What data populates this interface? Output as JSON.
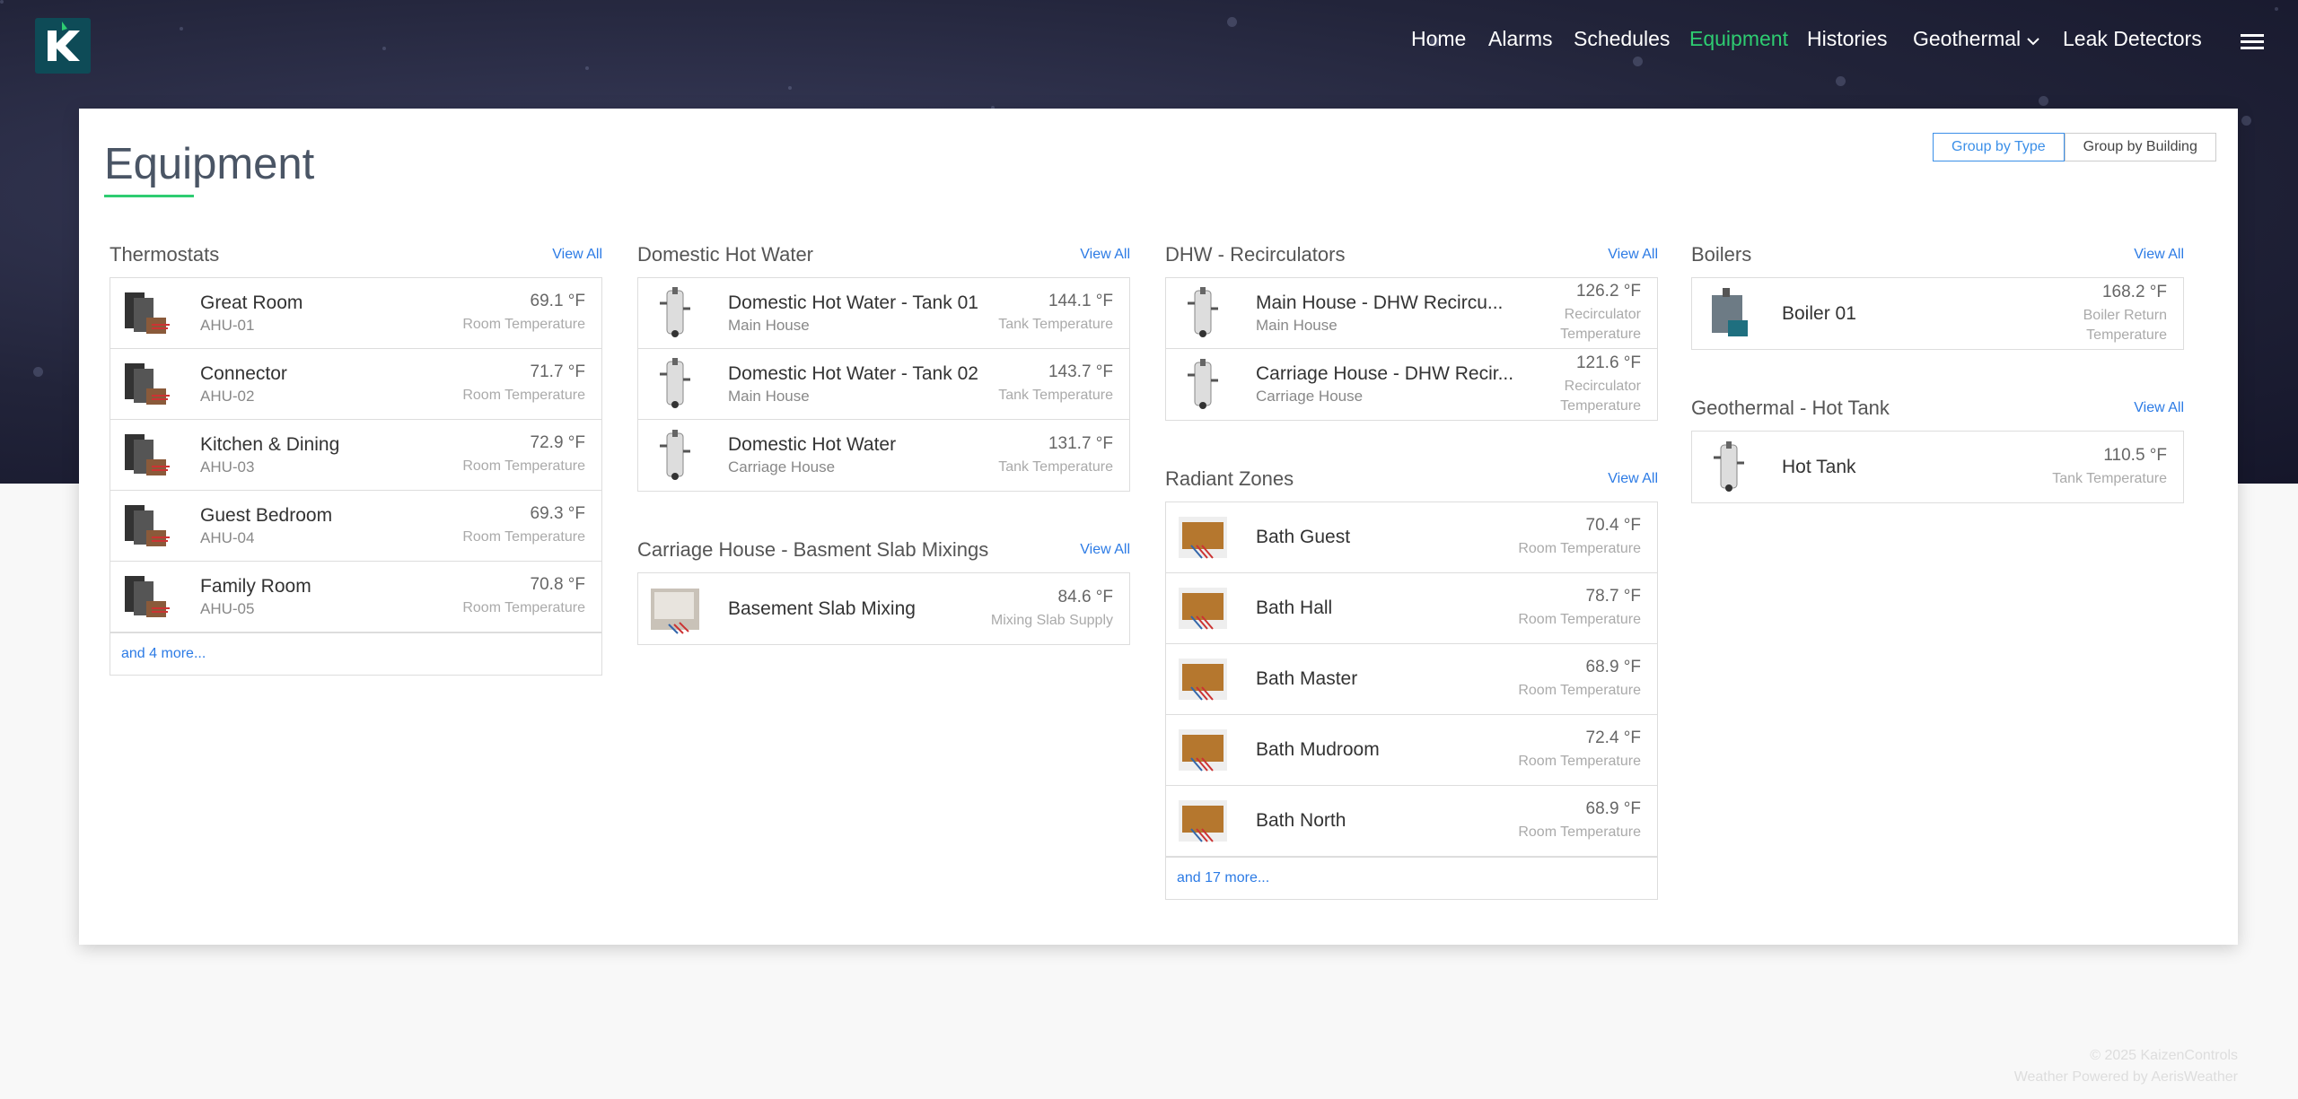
{
  "nav": {
    "items": [
      "Home",
      "Alarms",
      "Schedules",
      "Equipment",
      "Histories",
      "Geothermal",
      "Leak Detectors"
    ],
    "active": 3
  },
  "page": {
    "title": "Equipment",
    "buttons": [
      "Group by Type",
      "Group by Building"
    ]
  },
  "columns": [
    {
      "sections": [
        {
          "title": "Thermostats",
          "view_all": "View All",
          "items": [
            {
              "name": "Great Room",
              "sub": "AHU-01",
              "value": "69.1 °F",
              "label": "Room Temperature"
            },
            {
              "name": "Connector",
              "sub": "AHU-02",
              "value": "71.7 °F",
              "label": "Room Temperature"
            },
            {
              "name": "Kitchen & Dining",
              "sub": "AHU-03",
              "value": "72.9 °F",
              "label": "Room Temperature"
            },
            {
              "name": "Guest Bedroom",
              "sub": "AHU-04",
              "value": "69.3 °F",
              "label": "Room Temperature"
            },
            {
              "name": "Family Room",
              "sub": "AHU-05",
              "value": "70.8 °F",
              "label": "Room Temperature"
            }
          ],
          "more": "and 4 more..."
        }
      ]
    },
    {
      "sections": [
        {
          "title": "Domestic Hot Water",
          "view_all": "View All",
          "items": [
            {
              "name": "Domestic Hot Water - Tank 01",
              "sub": "Main House",
              "value": "144.1 °F",
              "label": "Tank Temperature"
            },
            {
              "name": "Domestic Hot Water - Tank 02",
              "sub": "Main House",
              "value": "143.7 °F",
              "label": "Tank Temperature"
            },
            {
              "name": "Domestic Hot Water",
              "sub": "Carriage House",
              "value": "131.7 °F",
              "label": "Tank Temperature"
            }
          ]
        },
        {
          "title": "Carriage House - Basment Slab Mixings",
          "view_all": "View All",
          "items": [
            {
              "name": "Basement Slab Mixing",
              "value": "84.6 °F",
              "label": "Mixing Slab Supply"
            }
          ]
        }
      ]
    },
    {
      "sections": [
        {
          "title": "DHW - Recirculators",
          "view_all": "View All",
          "items": [
            {
              "name": "Main House - DHW Recircu...",
              "sub": "Main House",
              "value": "126.2 °F",
              "label": "Recirculator Temperature"
            },
            {
              "name": "Carriage House - DHW Recir...",
              "sub": "Carriage House",
              "value": "121.6 °F",
              "label": "Recirculator Temperature"
            }
          ]
        },
        {
          "title": "Radiant Zones",
          "view_all": "View All",
          "items": [
            {
              "name": "Bath Guest",
              "value": "70.4 °F",
              "label": "Room Temperature"
            },
            {
              "name": "Bath Hall",
              "value": "78.7 °F",
              "label": "Room Temperature"
            },
            {
              "name": "Bath Master",
              "value": "68.9 °F",
              "label": "Room Temperature"
            },
            {
              "name": "Bath Mudroom",
              "value": "72.4 °F",
              "label": "Room Temperature"
            },
            {
              "name": "Bath North",
              "value": "68.9 °F",
              "label": "Room Temperature"
            }
          ],
          "more": "and 17 more..."
        }
      ]
    },
    {
      "sections": [
        {
          "title": "Boilers",
          "view_all": "View All",
          "items": [
            {
              "name": "Boiler 01",
              "value": "168.2 °F",
              "label": "Boiler Return Temperature"
            }
          ]
        },
        {
          "title": "Geothermal - Hot Tank",
          "view_all": "View All",
          "items": [
            {
              "name": "Hot Tank",
              "value": "110.5 °F",
              "label": "Tank Temperature"
            }
          ]
        }
      ]
    }
  ],
  "footer": {
    "copyright": "© 2025 KaizenControls",
    "weather": "Weather Powered by AerisWeather"
  }
}
